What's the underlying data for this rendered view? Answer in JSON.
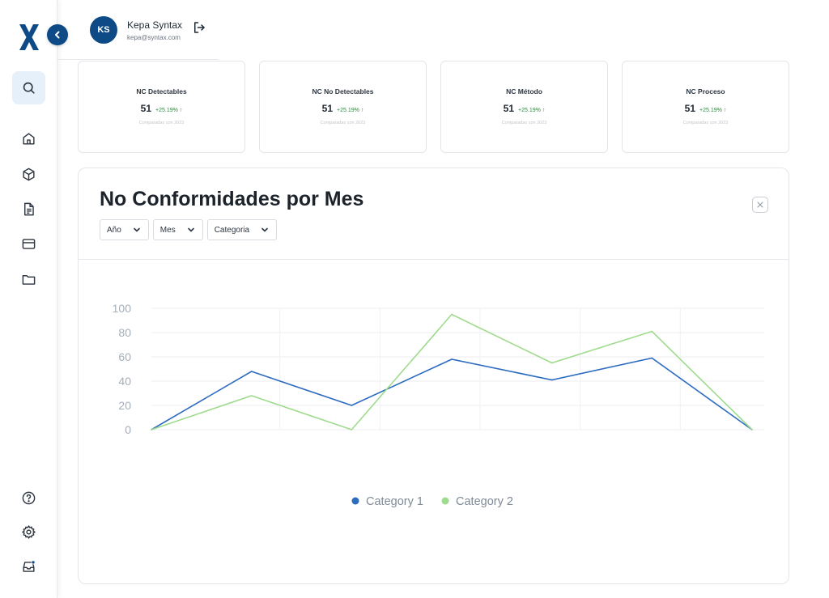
{
  "user": {
    "initials": "KS",
    "name": "Kepa Syntax",
    "email": "kepa@syntax.com"
  },
  "sidebar": {
    "logo": "X",
    "collapse_icon": "chevron-left-icon",
    "nav_icons": [
      "search-icon",
      "home-icon",
      "box-icon",
      "document-icon",
      "credit-card-icon",
      "folder-icon"
    ],
    "bottom_icons": [
      "help-icon",
      "gear-icon",
      "inbox-icon"
    ]
  },
  "stats": [
    {
      "title": "NC Detectables",
      "value": "51",
      "delta": "+25.19% ↑",
      "compare": "Comparadas con 2023"
    },
    {
      "title": "NC No Detectables",
      "value": "51",
      "delta": "+25.19% ↑",
      "compare": "Comparadas con 2023"
    },
    {
      "title": "NC Método",
      "value": "51",
      "delta": "+25.19% ↑",
      "compare": "Comparadas con 2023"
    },
    {
      "title": "NC Proceso",
      "value": "51",
      "delta": "+25.19% ↑",
      "compare": "Comparadas con 2023"
    }
  ],
  "chart_card": {
    "title": "No Conformidades por Mes",
    "filters": [
      "Año",
      "Mes",
      "Categoria"
    ]
  },
  "colors": {
    "brand": "#0d4a86",
    "series1": "#2d6cc0",
    "series2": "#9edb8d",
    "delta": "#2b8a3e"
  },
  "chart_data": {
    "type": "line",
    "title": "",
    "xlabel": "",
    "ylabel": "",
    "x": [
      0,
      1,
      2,
      3,
      4,
      5,
      6
    ],
    "ylim": [
      0,
      100
    ],
    "yticks": [
      0,
      20,
      40,
      60,
      80,
      100
    ],
    "grid": true,
    "legend": "bottom",
    "series": [
      {
        "name": "Category 1",
        "values": [
          0,
          48,
          20,
          58,
          41,
          59,
          0
        ]
      },
      {
        "name": "Category 2",
        "values": [
          0,
          28,
          0,
          95,
          55,
          81,
          0
        ]
      }
    ]
  }
}
